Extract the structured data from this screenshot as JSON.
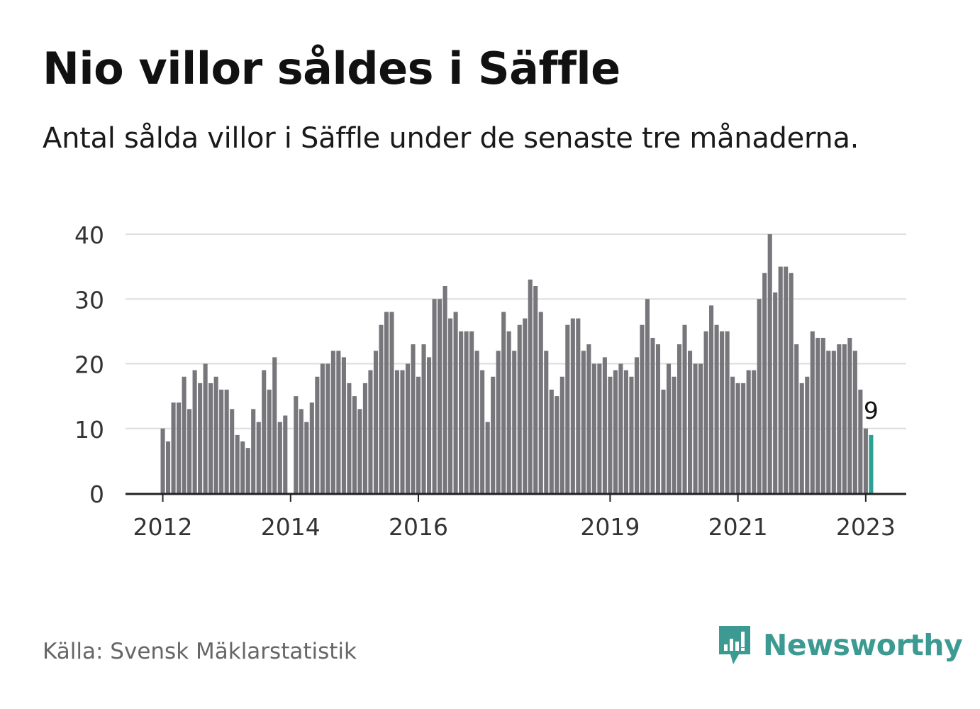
{
  "title": "Nio villor såldes i Säffle",
  "subtitle": "Antal sålda villor i Säffle under de senaste tre månaderna.",
  "source": "Källa: Svensk Mäklarstatistik",
  "brand": {
    "name": "Newsworthy",
    "icon": "newsworthy-logo-icon",
    "color": "#3d9a92"
  },
  "colors": {
    "bar": "#76767b",
    "highlight": "#2f9e93",
    "grid": "#dddddd",
    "axis": "#222222"
  },
  "chart_data": {
    "type": "bar",
    "title": "Nio villor såldes i Säffle",
    "start": "2012-01",
    "values": [
      10,
      8,
      14,
      14,
      18,
      13,
      19,
      17,
      20,
      17,
      18,
      16,
      16,
      13,
      9,
      8,
      7,
      13,
      11,
      19,
      16,
      21,
      11,
      12,
      0,
      15,
      13,
      11,
      14,
      18,
      20,
      20,
      22,
      22,
      21,
      17,
      15,
      13,
      17,
      19,
      22,
      26,
      28,
      28,
      19,
      19,
      20,
      23,
      18,
      23,
      21,
      30,
      30,
      32,
      27,
      28,
      25,
      25,
      25,
      22,
      19,
      11,
      18,
      22,
      28,
      25,
      22,
      26,
      27,
      33,
      32,
      28,
      22,
      16,
      15,
      18,
      26,
      27,
      27,
      22,
      23,
      20,
      20,
      21,
      18,
      19,
      20,
      19,
      18,
      21,
      26,
      30,
      24,
      23,
      16,
      20,
      18,
      23,
      26,
      22,
      20,
      20,
      25,
      29,
      26,
      25,
      25,
      18,
      17,
      17,
      19,
      19,
      30,
      34,
      40,
      31,
      35,
      35,
      34,
      23,
      17,
      18,
      25,
      24,
      24,
      22,
      22,
      23,
      23,
      24,
      22,
      16,
      10,
      9
    ],
    "highlight_last": true,
    "annotation": {
      "label": "9",
      "value": 9
    },
    "ylim": [
      0,
      40
    ],
    "yticks": [
      0,
      10,
      20,
      30,
      40
    ],
    "xticks": [
      {
        "label": "2012",
        "index": 0
      },
      {
        "label": "2014",
        "index": 24
      },
      {
        "label": "2016",
        "index": 48
      },
      {
        "label": "2019",
        "index": 84
      },
      {
        "label": "2021",
        "index": 108
      },
      {
        "label": "2023",
        "index": 132
      }
    ],
    "xlabel": "",
    "ylabel": "",
    "grid": true,
    "legend": "none"
  }
}
